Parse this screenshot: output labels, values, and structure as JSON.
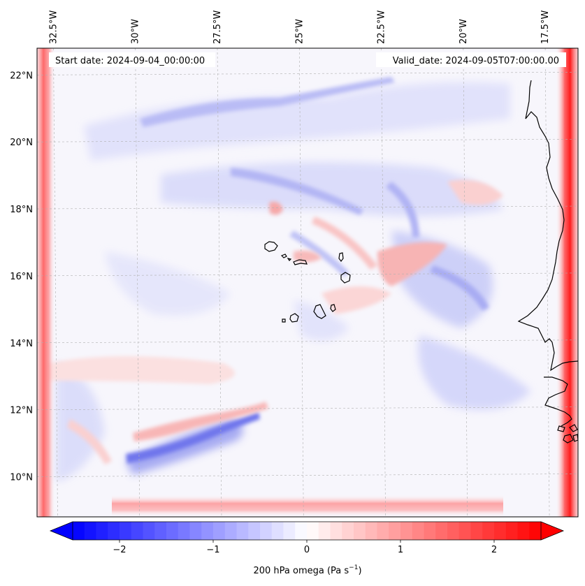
{
  "info": {
    "start_date": "Start date: 2024-09-04_00:00:00",
    "valid_date": "Valid_date: 2024-09-05T07:00:00.00"
  },
  "map": {
    "lon_range": [
      -33.0,
      -16.5
    ],
    "lat_range": [
      8.8,
      22.8
    ],
    "lon_ticks": [
      {
        "value": -32.5,
        "label": "32.5°W"
      },
      {
        "value": -30.0,
        "label": "30°W"
      },
      {
        "value": -27.5,
        "label": "27.5°W"
      },
      {
        "value": -25.0,
        "label": "25°W"
      },
      {
        "value": -22.5,
        "label": "22.5°W"
      },
      {
        "value": -20.0,
        "label": "20°W"
      },
      {
        "value": -17.5,
        "label": "17.5°W"
      }
    ],
    "lat_ticks": [
      {
        "value": 22,
        "label": "22°N"
      },
      {
        "value": 20,
        "label": "20°N"
      },
      {
        "value": 18,
        "label": "18°N"
      },
      {
        "value": 16,
        "label": "16°N"
      },
      {
        "value": 14,
        "label": "14°N"
      },
      {
        "value": 12,
        "label": "12°N"
      },
      {
        "value": 10,
        "label": "10°N"
      }
    ],
    "gridlines": true
  },
  "colorbar": {
    "label_main": "200 hPa omega (Pa s",
    "label_sup": "−1",
    "label_close": ")",
    "range": [
      -2.5,
      2.5
    ],
    "colormap": "bwr",
    "extend": "both",
    "ticks": [
      {
        "value": -2,
        "label": "−2"
      },
      {
        "value": -1,
        "label": "−1"
      },
      {
        "value": 0,
        "label": "0"
      },
      {
        "value": 1,
        "label": "1"
      },
      {
        "value": 2,
        "label": "2"
      }
    ]
  },
  "colors": {
    "negative": "#0000ff",
    "zero": "#ffffff",
    "positive": "#ff0000",
    "coastline": "#000000",
    "grid": "#b0b0b0"
  }
}
